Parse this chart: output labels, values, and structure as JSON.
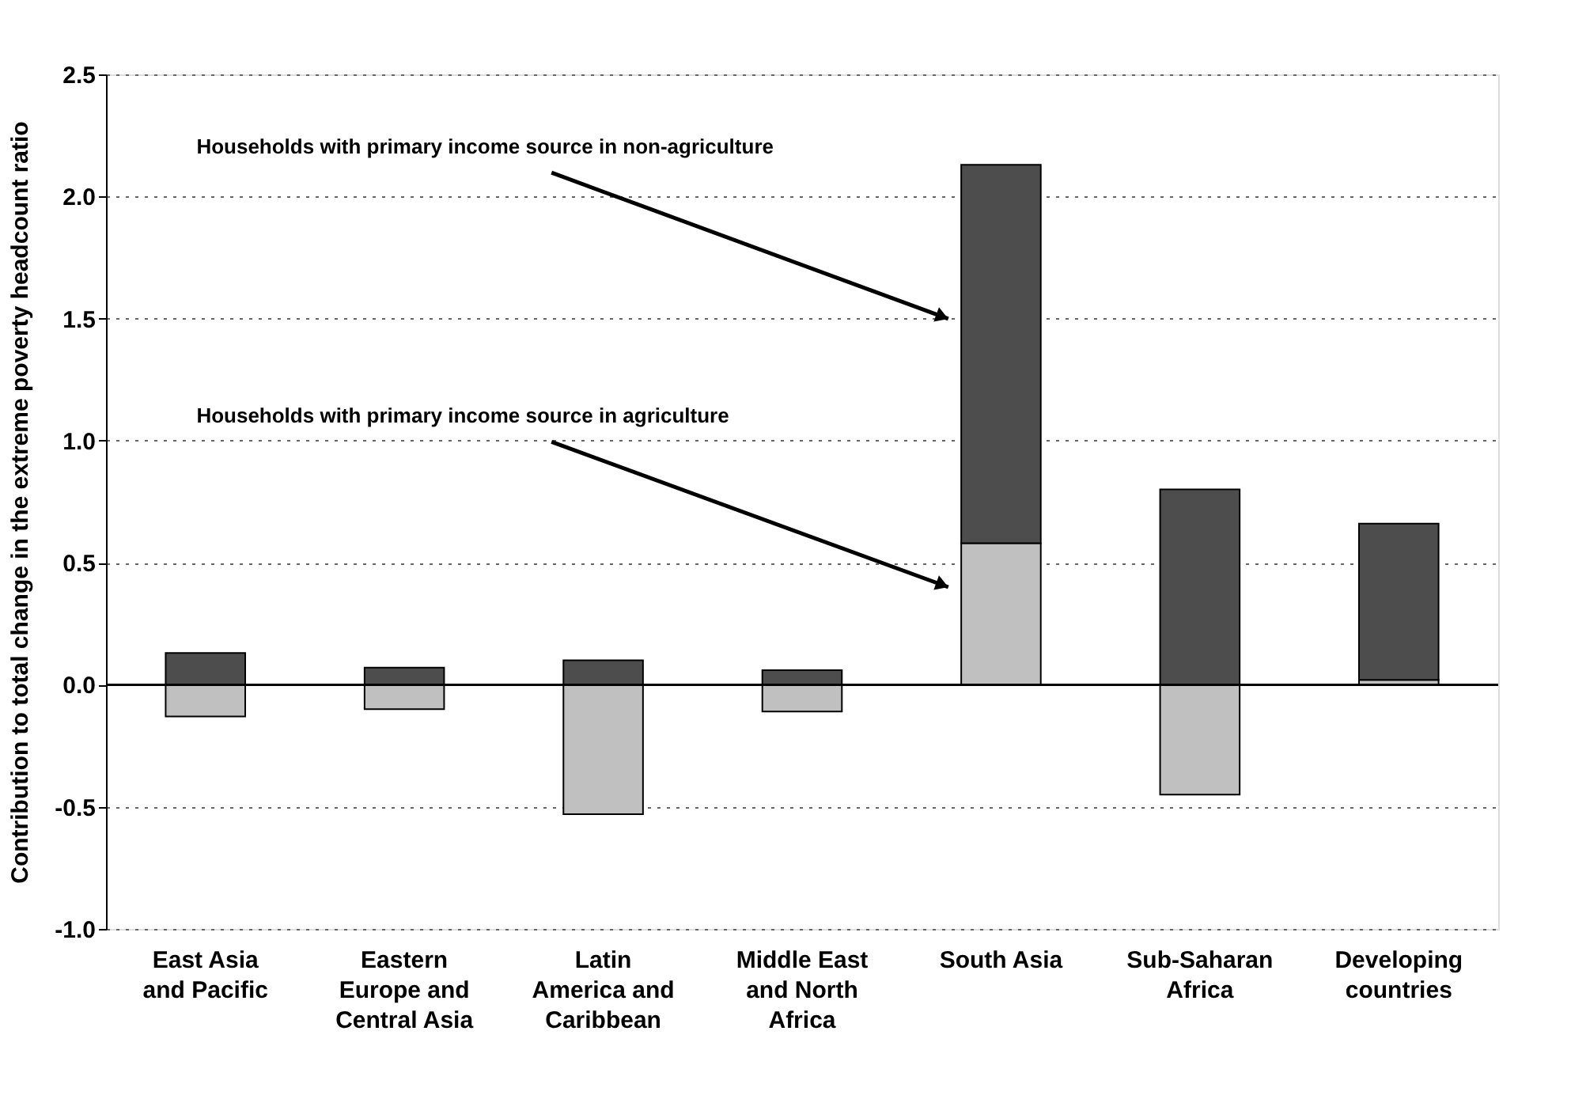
{
  "chart_data": {
    "type": "bar",
    "stacked": true,
    "ylabel": "Contribution to total change in the extreme poverty headcount ratio",
    "categories": [
      "East Asia and Pacific",
      "Eastern Europe and Central Asia",
      "Latin America and Caribbean",
      "Middle East and North Africa",
      "South Asia",
      "Sub-Saharan Africa",
      "Developing countries"
    ],
    "series": [
      {
        "color": "#c0c0c0",
        "values": [
          -0.13,
          -0.1,
          -0.53,
          -0.11,
          0.58,
          -0.45,
          0.02
        ]
      },
      {
        "color": "#4d4d4d",
        "values": [
          0.13,
          0.07,
          0.1,
          0.06,
          1.55,
          0.8,
          0.64
        ]
      }
    ],
    "ylim": [
      -1.0,
      2.5
    ],
    "yticks": [
      {
        "value": -1.0,
        "label": "-1.0"
      },
      {
        "value": -0.5,
        "label": "-0.5"
      },
      {
        "value": 0,
        "label": "0.0"
      },
      {
        "value": 0.5,
        "label": "0.5"
      },
      {
        "value": 1.0,
        "label": "1.0"
      },
      {
        "value": 1.5,
        "label": "1.5"
      },
      {
        "value": 2.0,
        "label": "2.0"
      },
      {
        "value": 2.5,
        "label": "2.5"
      }
    ],
    "grid": "y",
    "legend": false,
    "ref_lines": [
      {
        "axis": "y",
        "value": 0,
        "color": "#000000"
      }
    ],
    "annotations": [
      "Households with primary income source in non-agriculture",
      "Households with primary income source in agriculture"
    ]
  }
}
